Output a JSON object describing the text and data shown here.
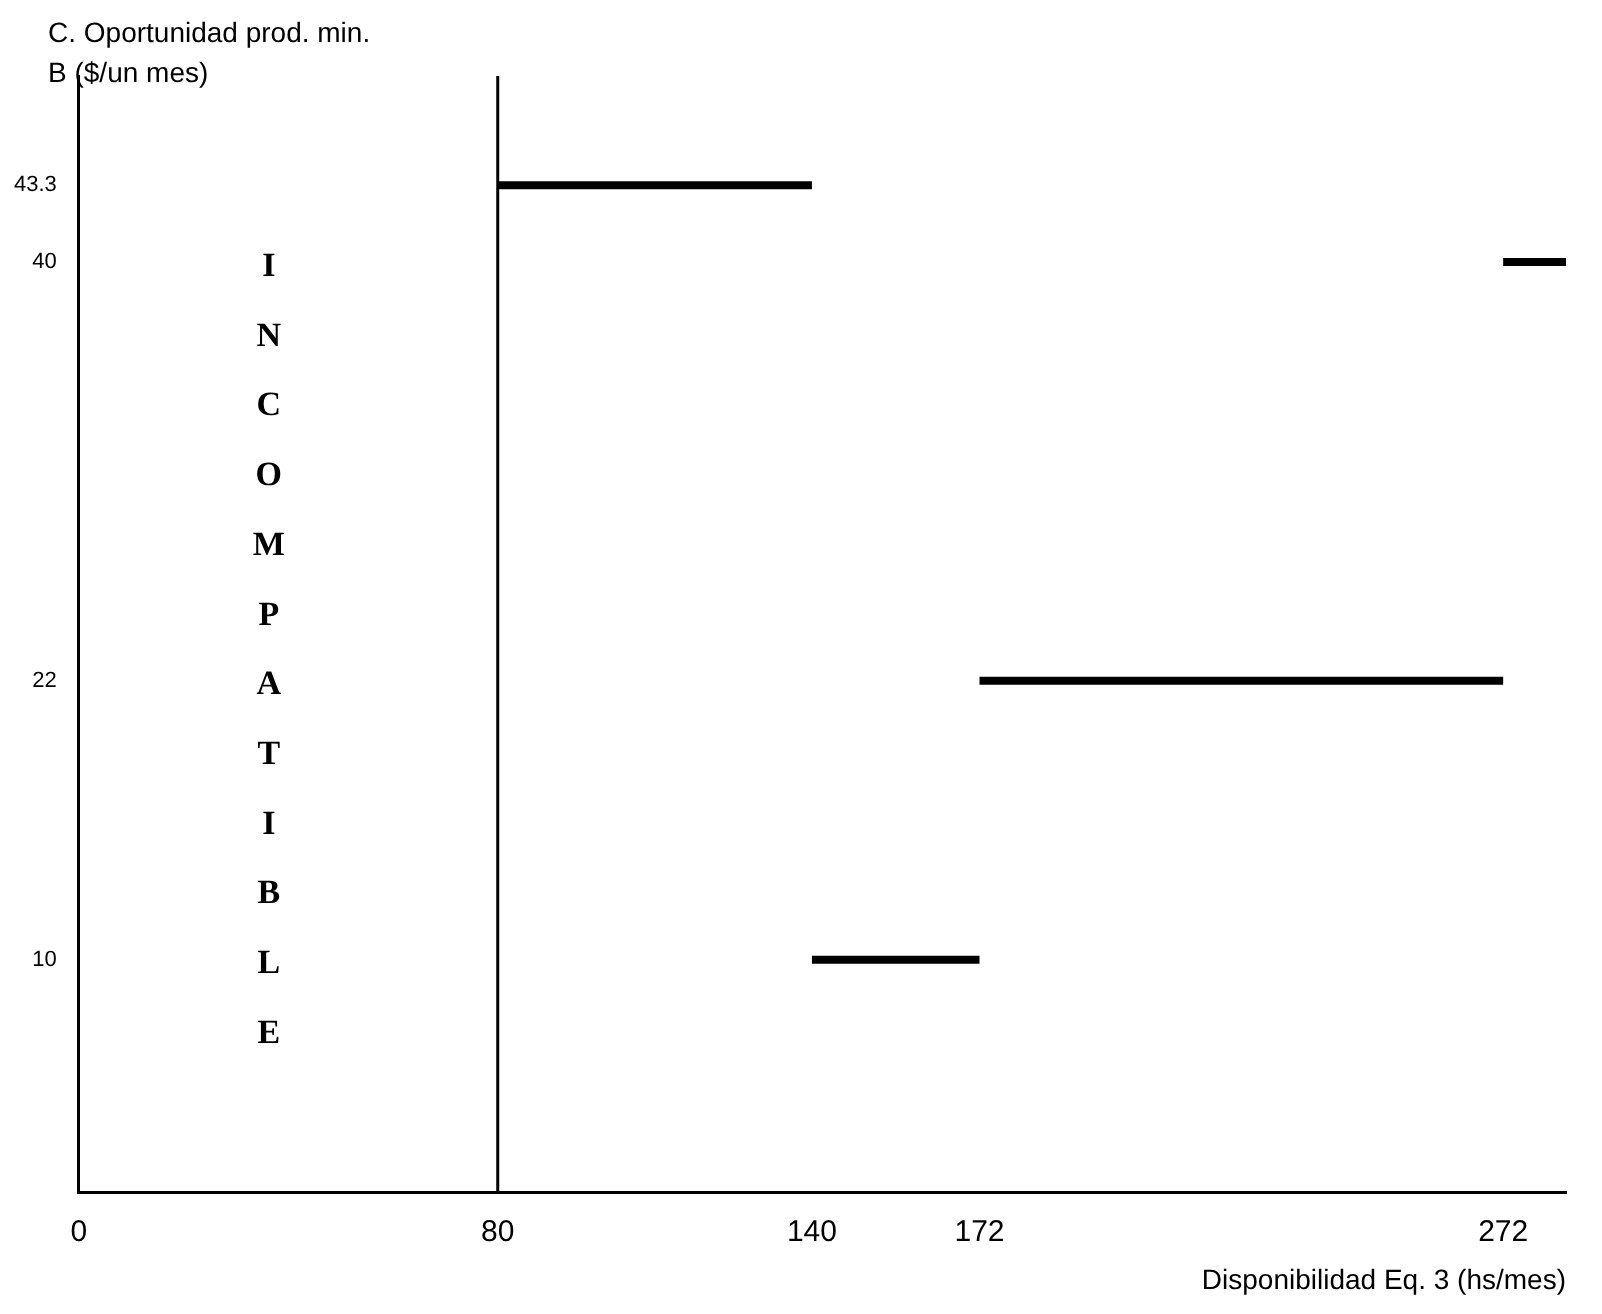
{
  "chart_data": {
    "type": "line",
    "ylabel": "C. Oportunidad prod. min. B ($/un mes)",
    "xlabel": "Disponibilidad Eq. 3 (hs/mes)",
    "xlim": [
      0,
      284
    ],
    "xticks": [
      0,
      80,
      140,
      172,
      272
    ],
    "ylim": [
      0,
      48
    ],
    "yticks": [
      10,
      22,
      40,
      43.3
    ],
    "series": [
      {
        "color": "#000000",
        "x": [
          80,
          140
        ],
        "values": [
          43.3,
          43.3
        ]
      },
      {
        "color": "#000000",
        "x": [
          272,
          284
        ],
        "values": [
          40,
          40
        ]
      },
      {
        "color": "#000000",
        "x": [
          172,
          272
        ],
        "values": [
          22,
          22
        ]
      },
      {
        "color": "#000000",
        "x": [
          140,
          172
        ],
        "values": [
          10,
          10
        ]
      }
    ],
    "ref_lines": [
      {
        "axis": "x",
        "value": 80,
        "color": "#000000"
      }
    ],
    "annotations": [
      "INCOMPATIBLE"
    ],
    "grid": false,
    "legend": false,
    "marker": "none",
    "line_style": "solid"
  }
}
